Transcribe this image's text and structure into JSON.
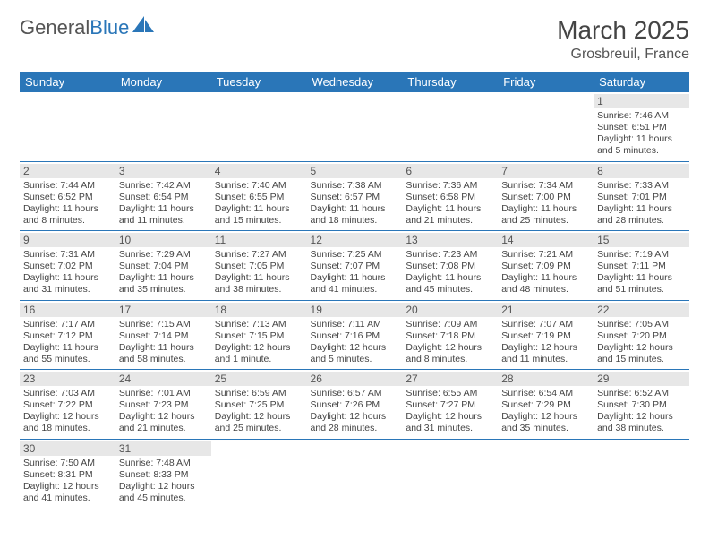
{
  "logo": {
    "text_a": "General",
    "text_b": "Blue",
    "sail_color": "#2a76b8"
  },
  "title": "March 2025",
  "location": "Grosbreuil, France",
  "colors": {
    "header_bg": "#2a76b8",
    "header_fg": "#ffffff",
    "daynum_bg": "#e7e7e7",
    "border": "#2a76b8"
  },
  "fonts": {
    "title_size": 28,
    "location_size": 16,
    "th_size": 13,
    "daynum_size": 12,
    "info_size": 10.5
  },
  "day_headers": [
    "Sunday",
    "Monday",
    "Tuesday",
    "Wednesday",
    "Thursday",
    "Friday",
    "Saturday"
  ],
  "weeks": [
    [
      {
        "n": "",
        "sr": "",
        "ss": "",
        "dl": ""
      },
      {
        "n": "",
        "sr": "",
        "ss": "",
        "dl": ""
      },
      {
        "n": "",
        "sr": "",
        "ss": "",
        "dl": ""
      },
      {
        "n": "",
        "sr": "",
        "ss": "",
        "dl": ""
      },
      {
        "n": "",
        "sr": "",
        "ss": "",
        "dl": ""
      },
      {
        "n": "",
        "sr": "",
        "ss": "",
        "dl": ""
      },
      {
        "n": "1",
        "sr": "Sunrise: 7:46 AM",
        "ss": "Sunset: 6:51 PM",
        "dl": "Daylight: 11 hours and 5 minutes."
      }
    ],
    [
      {
        "n": "2",
        "sr": "Sunrise: 7:44 AM",
        "ss": "Sunset: 6:52 PM",
        "dl": "Daylight: 11 hours and 8 minutes."
      },
      {
        "n": "3",
        "sr": "Sunrise: 7:42 AM",
        "ss": "Sunset: 6:54 PM",
        "dl": "Daylight: 11 hours and 11 minutes."
      },
      {
        "n": "4",
        "sr": "Sunrise: 7:40 AM",
        "ss": "Sunset: 6:55 PM",
        "dl": "Daylight: 11 hours and 15 minutes."
      },
      {
        "n": "5",
        "sr": "Sunrise: 7:38 AM",
        "ss": "Sunset: 6:57 PM",
        "dl": "Daylight: 11 hours and 18 minutes."
      },
      {
        "n": "6",
        "sr": "Sunrise: 7:36 AM",
        "ss": "Sunset: 6:58 PM",
        "dl": "Daylight: 11 hours and 21 minutes."
      },
      {
        "n": "7",
        "sr": "Sunrise: 7:34 AM",
        "ss": "Sunset: 7:00 PM",
        "dl": "Daylight: 11 hours and 25 minutes."
      },
      {
        "n": "8",
        "sr": "Sunrise: 7:33 AM",
        "ss": "Sunset: 7:01 PM",
        "dl": "Daylight: 11 hours and 28 minutes."
      }
    ],
    [
      {
        "n": "9",
        "sr": "Sunrise: 7:31 AM",
        "ss": "Sunset: 7:02 PM",
        "dl": "Daylight: 11 hours and 31 minutes."
      },
      {
        "n": "10",
        "sr": "Sunrise: 7:29 AM",
        "ss": "Sunset: 7:04 PM",
        "dl": "Daylight: 11 hours and 35 minutes."
      },
      {
        "n": "11",
        "sr": "Sunrise: 7:27 AM",
        "ss": "Sunset: 7:05 PM",
        "dl": "Daylight: 11 hours and 38 minutes."
      },
      {
        "n": "12",
        "sr": "Sunrise: 7:25 AM",
        "ss": "Sunset: 7:07 PM",
        "dl": "Daylight: 11 hours and 41 minutes."
      },
      {
        "n": "13",
        "sr": "Sunrise: 7:23 AM",
        "ss": "Sunset: 7:08 PM",
        "dl": "Daylight: 11 hours and 45 minutes."
      },
      {
        "n": "14",
        "sr": "Sunrise: 7:21 AM",
        "ss": "Sunset: 7:09 PM",
        "dl": "Daylight: 11 hours and 48 minutes."
      },
      {
        "n": "15",
        "sr": "Sunrise: 7:19 AM",
        "ss": "Sunset: 7:11 PM",
        "dl": "Daylight: 11 hours and 51 minutes."
      }
    ],
    [
      {
        "n": "16",
        "sr": "Sunrise: 7:17 AM",
        "ss": "Sunset: 7:12 PM",
        "dl": "Daylight: 11 hours and 55 minutes."
      },
      {
        "n": "17",
        "sr": "Sunrise: 7:15 AM",
        "ss": "Sunset: 7:14 PM",
        "dl": "Daylight: 11 hours and 58 minutes."
      },
      {
        "n": "18",
        "sr": "Sunrise: 7:13 AM",
        "ss": "Sunset: 7:15 PM",
        "dl": "Daylight: 12 hours and 1 minute."
      },
      {
        "n": "19",
        "sr": "Sunrise: 7:11 AM",
        "ss": "Sunset: 7:16 PM",
        "dl": "Daylight: 12 hours and 5 minutes."
      },
      {
        "n": "20",
        "sr": "Sunrise: 7:09 AM",
        "ss": "Sunset: 7:18 PM",
        "dl": "Daylight: 12 hours and 8 minutes."
      },
      {
        "n": "21",
        "sr": "Sunrise: 7:07 AM",
        "ss": "Sunset: 7:19 PM",
        "dl": "Daylight: 12 hours and 11 minutes."
      },
      {
        "n": "22",
        "sr": "Sunrise: 7:05 AM",
        "ss": "Sunset: 7:20 PM",
        "dl": "Daylight: 12 hours and 15 minutes."
      }
    ],
    [
      {
        "n": "23",
        "sr": "Sunrise: 7:03 AM",
        "ss": "Sunset: 7:22 PM",
        "dl": "Daylight: 12 hours and 18 minutes."
      },
      {
        "n": "24",
        "sr": "Sunrise: 7:01 AM",
        "ss": "Sunset: 7:23 PM",
        "dl": "Daylight: 12 hours and 21 minutes."
      },
      {
        "n": "25",
        "sr": "Sunrise: 6:59 AM",
        "ss": "Sunset: 7:25 PM",
        "dl": "Daylight: 12 hours and 25 minutes."
      },
      {
        "n": "26",
        "sr": "Sunrise: 6:57 AM",
        "ss": "Sunset: 7:26 PM",
        "dl": "Daylight: 12 hours and 28 minutes."
      },
      {
        "n": "27",
        "sr": "Sunrise: 6:55 AM",
        "ss": "Sunset: 7:27 PM",
        "dl": "Daylight: 12 hours and 31 minutes."
      },
      {
        "n": "28",
        "sr": "Sunrise: 6:54 AM",
        "ss": "Sunset: 7:29 PM",
        "dl": "Daylight: 12 hours and 35 minutes."
      },
      {
        "n": "29",
        "sr": "Sunrise: 6:52 AM",
        "ss": "Sunset: 7:30 PM",
        "dl": "Daylight: 12 hours and 38 minutes."
      }
    ],
    [
      {
        "n": "30",
        "sr": "Sunrise: 7:50 AM",
        "ss": "Sunset: 8:31 PM",
        "dl": "Daylight: 12 hours and 41 minutes."
      },
      {
        "n": "31",
        "sr": "Sunrise: 7:48 AM",
        "ss": "Sunset: 8:33 PM",
        "dl": "Daylight: 12 hours and 45 minutes."
      },
      {
        "n": "",
        "sr": "",
        "ss": "",
        "dl": ""
      },
      {
        "n": "",
        "sr": "",
        "ss": "",
        "dl": ""
      },
      {
        "n": "",
        "sr": "",
        "ss": "",
        "dl": ""
      },
      {
        "n": "",
        "sr": "",
        "ss": "",
        "dl": ""
      },
      {
        "n": "",
        "sr": "",
        "ss": "",
        "dl": ""
      }
    ]
  ]
}
